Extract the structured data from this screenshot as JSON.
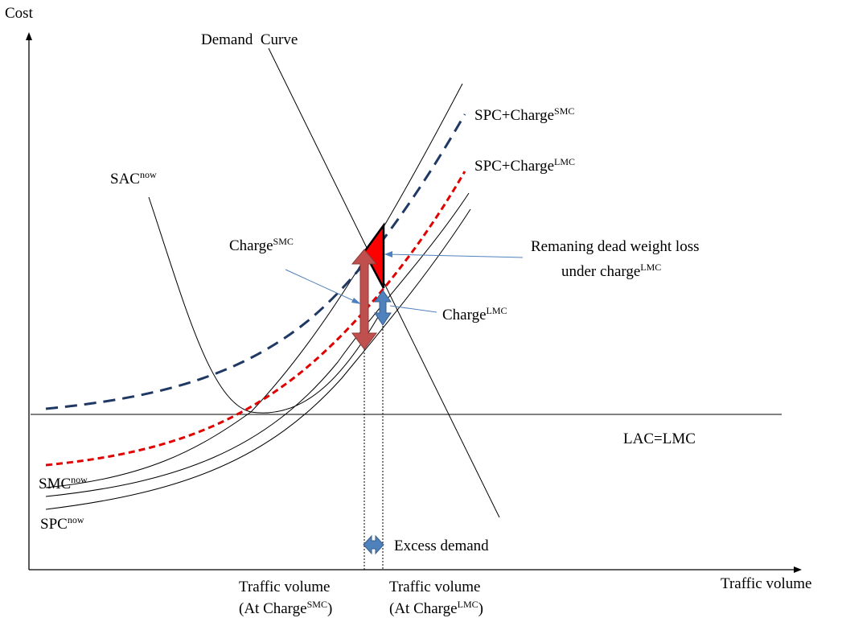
{
  "axes": {
    "y_label": "Cost",
    "x_label": "Traffic volume"
  },
  "curves": {
    "demand": "Demand  Curve",
    "sac": {
      "base": "SAC",
      "sup": "now"
    },
    "smc": {
      "base": "SMC",
      "sup": "now"
    },
    "spc": {
      "base": "SPC",
      "sup": "now"
    },
    "lac_lmc": "LAC=LMC",
    "spc_charge_smc": {
      "base": "SPC+Charge",
      "sup": "SMC"
    },
    "spc_charge_lmc": {
      "base": "SPC+Charge",
      "sup": "LMC"
    }
  },
  "annotations": {
    "charge_smc": {
      "base": "Charge",
      "sup": "SMC"
    },
    "charge_lmc": {
      "base": "Charge",
      "sup": "LMC"
    },
    "dwl_line1": "Remaning dead weight loss",
    "dwl_line2": {
      "base": "under charge",
      "sup": "LMC"
    },
    "excess_demand": "Excess demand",
    "tv_smc_line1": "Traffic volume",
    "tv_smc_line2": {
      "pre": "(At Charge",
      "sup": "SMC",
      "post": ")"
    },
    "tv_lmc_line1": "Traffic volume",
    "tv_lmc_line2": {
      "pre": "(At Charge",
      "sup": "LMC",
      "post": ")"
    }
  },
  "colors": {
    "axis": "#000000",
    "curve": "#000000",
    "smc_charge_curve": "#1f3864",
    "lmc_charge_curve": "#e00000",
    "dwl_fill": "#ff0000",
    "charge_smc_arrow": "#c0504d",
    "charge_lmc_arrow": "#4f81bd",
    "callout": "#4f81bd"
  }
}
